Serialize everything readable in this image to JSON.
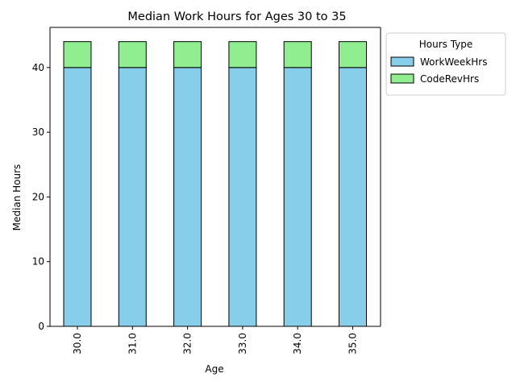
{
  "chart_data": {
    "type": "bar",
    "stacked": true,
    "title": "Median Work Hours for Ages 30 to 35",
    "xlabel": "Age",
    "ylabel": "Median Hours",
    "categories": [
      "30.0",
      "31.0",
      "32.0",
      "33.0",
      "34.0",
      "35.0"
    ],
    "series": [
      {
        "name": "WorkWeekHrs",
        "values": [
          40,
          40,
          40,
          40,
          40,
          40
        ],
        "color": "#87ceeb"
      },
      {
        "name": "CodeRevHrs",
        "values": [
          4,
          4,
          4,
          4,
          4,
          4
        ],
        "color": "#90ee90"
      }
    ],
    "ylim": [
      0,
      46.2
    ],
    "yticks": [
      0,
      10,
      20,
      30,
      40
    ],
    "legend": {
      "title": "Hours Type",
      "placement": "outside top-right"
    },
    "grid": false
  }
}
